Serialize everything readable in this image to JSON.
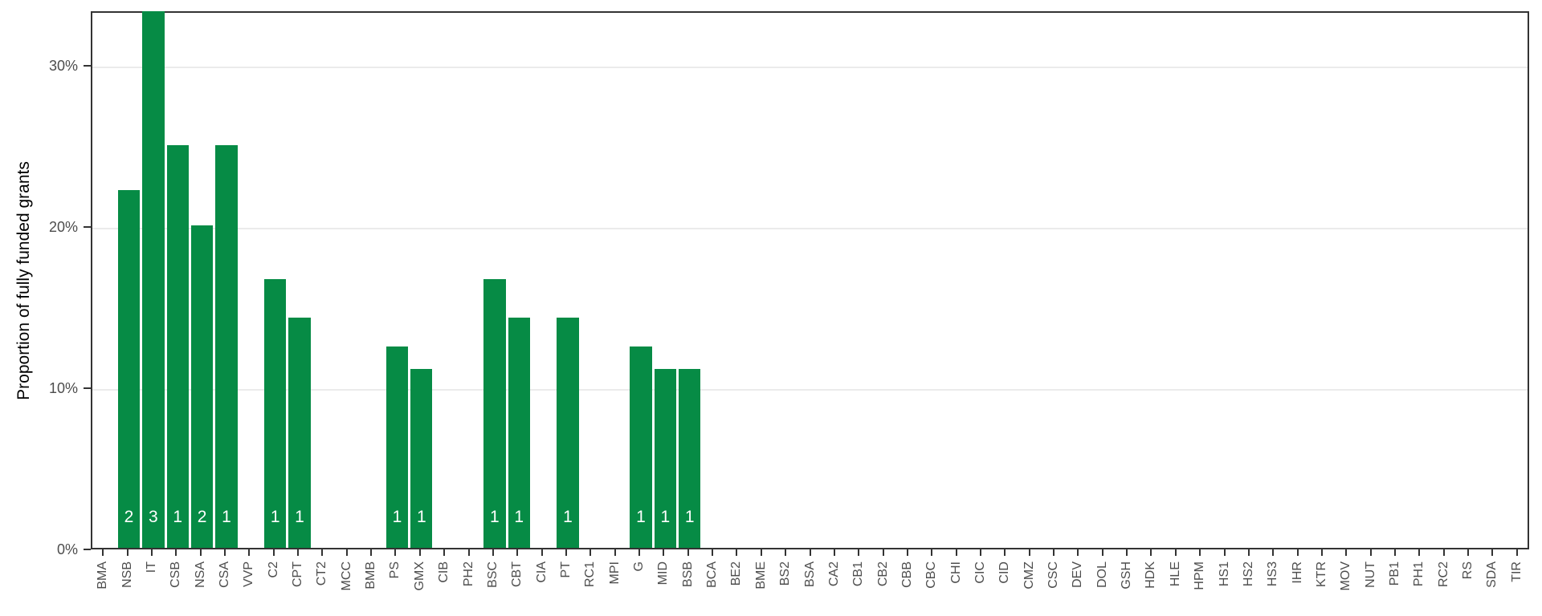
{
  "chart_data": {
    "type": "bar",
    "title": "",
    "xlabel": "",
    "ylabel": "Proportion of fully funded grants",
    "ylim": [
      0,
      33.4
    ],
    "ytick_values": [
      0,
      10,
      20,
      30
    ],
    "ytick_labels": [
      "0%",
      "10%",
      "20%",
      "30%"
    ],
    "grid": "major-horizontal",
    "legend": "none",
    "bar_color": "#068b45",
    "categories": [
      "BMA",
      "NSB",
      "IT",
      "CSB",
      "NSA",
      "CSA",
      "VVP",
      "C2",
      "CPT",
      "CT2",
      "MCC",
      "BMB",
      "PS",
      "GMX",
      "CIB",
      "PH2",
      "BSC",
      "CBT",
      "CIA",
      "PT",
      "RC1",
      "MPI",
      "G",
      "MID",
      "BSB",
      "BCA",
      "BE2",
      "BME",
      "BS2",
      "BSA",
      "CA2",
      "CB1",
      "CB2",
      "CBB",
      "CBC",
      "CHI",
      "CIC",
      "CID",
      "CMZ",
      "CSC",
      "DEV",
      "DOL",
      "GSH",
      "HDK",
      "HLE",
      "HPM",
      "HS1",
      "HS2",
      "HS3",
      "IHR",
      "KTR",
      "MOV",
      "NUT",
      "PB1",
      "PH1",
      "RC2",
      "RS",
      "SDA",
      "TIR"
    ],
    "values": [
      0,
      22.2,
      33.3,
      25,
      20,
      25,
      0,
      16.7,
      14.3,
      0,
      0,
      0,
      12.5,
      11.1,
      0,
      0,
      16.7,
      14.3,
      0,
      14.3,
      0,
      0,
      12.5,
      11.1,
      11.1,
      0,
      0,
      0,
      0,
      0,
      0,
      0,
      0,
      0,
      0,
      0,
      0,
      0,
      0,
      0,
      0,
      0,
      0,
      0,
      0,
      0,
      0,
      0,
      0,
      0,
      0,
      0,
      0,
      0,
      0,
      0,
      0,
      0,
      0
    ],
    "bar_count_labels": [
      "",
      "2",
      "3",
      "1",
      "2",
      "1",
      "",
      "1",
      "1",
      "",
      "",
      "",
      "1",
      "1",
      "",
      "",
      "1",
      "1",
      "",
      "1",
      "",
      "",
      "1",
      "1",
      "1",
      "",
      "",
      "",
      "",
      "",
      "",
      "",
      "",
      "",
      "",
      "",
      "",
      "",
      "",
      "",
      "",
      "",
      "",
      "",
      "",
      "",
      "",
      "",
      "",
      "",
      "",
      "",
      "",
      "",
      "",
      "",
      "",
      "",
      ""
    ]
  },
  "colors": {
    "bar": "#068b45",
    "grid": "#ebebeb",
    "axis": "#333333",
    "tick_text": "#4d4d4d",
    "title_text": "#000000",
    "bar_label_text": "#ffffff"
  }
}
